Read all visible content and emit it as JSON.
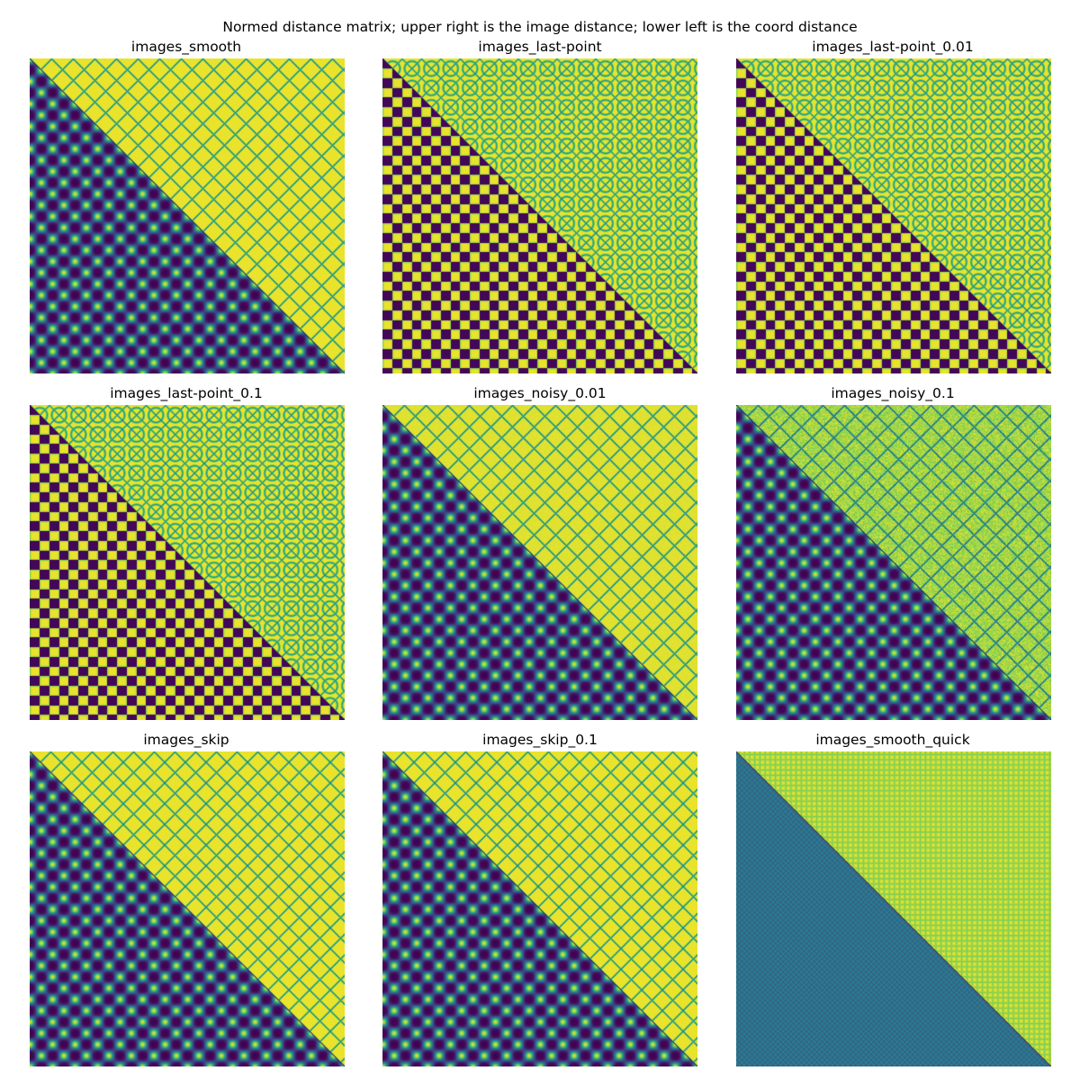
{
  "figure": {
    "suptitle": "Normed distance matrix; upper right is the image distance; lower left is the coord distance"
  },
  "colormap": {
    "name": "viridis",
    "stops": [
      "#440154",
      "#3b528b",
      "#21918c",
      "#5ec962",
      "#fde725"
    ]
  },
  "chart_data": [
    {
      "type": "heatmap",
      "title": "images_smooth",
      "lower": {
        "pattern": "blobs",
        "period": 5.0,
        "floor": 0.0
      },
      "upper": {
        "pattern": "grid",
        "period": 4.8,
        "noise": 0.0
      }
    },
    {
      "type": "heatmap",
      "title": "images_last-point",
      "lower": {
        "pattern": "checker",
        "period": 4.3
      },
      "upper": {
        "pattern": "ring",
        "period": 4.3,
        "noise": 0.0
      }
    },
    {
      "type": "heatmap",
      "title": "images_last-point_0.01",
      "lower": {
        "pattern": "checker",
        "period": 4.3
      },
      "upper": {
        "pattern": "ring",
        "period": 4.3,
        "noise": 0.0
      }
    },
    {
      "type": "heatmap",
      "title": "images_last-point_0.1",
      "lower": {
        "pattern": "checker",
        "period": 4.3
      },
      "upper": {
        "pattern": "ring",
        "period": 4.3,
        "noise": 0.0
      }
    },
    {
      "type": "heatmap",
      "title": "images_noisy_0.01",
      "lower": {
        "pattern": "blobs",
        "period": 5.0,
        "floor": 0.0
      },
      "upper": {
        "pattern": "grid",
        "period": 4.8,
        "noise": 0.05
      }
    },
    {
      "type": "heatmap",
      "title": "images_noisy_0.1",
      "lower": {
        "pattern": "blobs",
        "period": 5.0,
        "floor": 0.0
      },
      "upper": {
        "pattern": "grid",
        "period": 4.8,
        "noise": 0.35
      }
    },
    {
      "type": "heatmap",
      "title": "images_skip",
      "lower": {
        "pattern": "blobs",
        "period": 5.0,
        "floor": 0.0
      },
      "upper": {
        "pattern": "grid",
        "period": 4.6,
        "noise": 0.0
      }
    },
    {
      "type": "heatmap",
      "title": "images_skip_0.1",
      "lower": {
        "pattern": "blobs",
        "period": 5.0,
        "floor": 0.0
      },
      "upper": {
        "pattern": "grid",
        "period": 4.6,
        "noise": 0.0
      }
    },
    {
      "type": "heatmap",
      "title": "images_smooth_quick",
      "lower": {
        "pattern": "fine",
        "period": 1.15
      },
      "upper": {
        "pattern": "fine-grid",
        "period": 1.15
      }
    }
  ]
}
